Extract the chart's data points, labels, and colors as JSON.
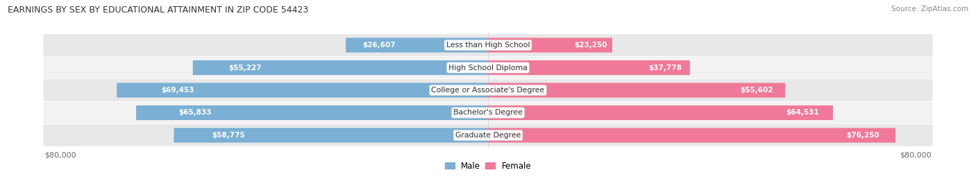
{
  "title": "EARNINGS BY SEX BY EDUCATIONAL ATTAINMENT IN ZIP CODE 54423",
  "source": "Source: ZipAtlas.com",
  "categories": [
    "Less than High School",
    "High School Diploma",
    "College or Associate's Degree",
    "Bachelor's Degree",
    "Graduate Degree"
  ],
  "male_values": [
    26607,
    55227,
    69453,
    65833,
    58775
  ],
  "female_values": [
    23250,
    37778,
    55602,
    64531,
    76250
  ],
  "male_color": "#7bafd4",
  "female_color": "#f07898",
  "male_label": "Male",
  "female_label": "Female",
  "max_value": 80000,
  "row_color_even": "#e8e8e8",
  "row_color_odd": "#f2f2f2",
  "bg_color": "#ffffff"
}
